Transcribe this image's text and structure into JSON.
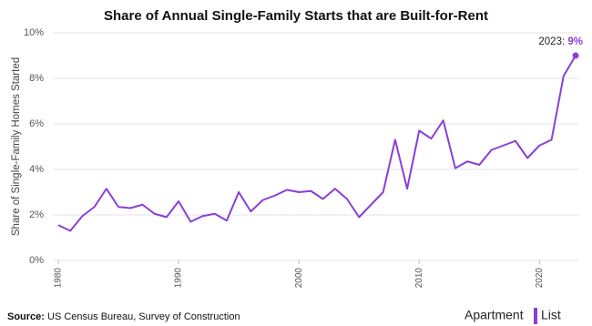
{
  "chart_data": {
    "type": "line",
    "title": "Share of Annual Single-Family Starts that are Built-for-Rent",
    "y_label": "Share of Single-Family Homes Started",
    "x": [
      1980,
      1981,
      1982,
      1983,
      1984,
      1985,
      1986,
      1987,
      1988,
      1989,
      1990,
      1991,
      1992,
      1993,
      1994,
      1995,
      1996,
      1997,
      1998,
      1999,
      2000,
      2001,
      2002,
      2003,
      2004,
      2005,
      2006,
      2007,
      2008,
      2009,
      2010,
      2011,
      2012,
      2013,
      2014,
      2015,
      2016,
      2017,
      2018,
      2019,
      2020,
      2021,
      2022,
      2023
    ],
    "series": [
      {
        "color": "#8a3fd6",
        "values": [
          1.55,
          1.3,
          1.95,
          2.35,
          3.15,
          2.35,
          2.3,
          2.45,
          2.05,
          1.9,
          2.6,
          1.7,
          1.95,
          2.05,
          1.75,
          3.0,
          2.15,
          2.65,
          2.85,
          3.1,
          3.0,
          3.05,
          2.7,
          3.15,
          2.7,
          1.9,
          2.45,
          3.0,
          5.3,
          3.15,
          5.7,
          5.35,
          6.15,
          4.05,
          4.35,
          4.2,
          4.85,
          5.05,
          5.25,
          4.5,
          5.05,
          5.3,
          8.1,
          9.0
        ]
      }
    ],
    "xlim": [
      1980,
      2023
    ],
    "xticks": [
      1980,
      1990,
      2000,
      2010,
      2020
    ],
    "ylim": [
      0,
      10
    ],
    "yticks": [
      {
        "value": 0,
        "label": "0%"
      },
      {
        "value": 2,
        "label": "2%"
      },
      {
        "value": 4,
        "label": "4%"
      },
      {
        "value": 6,
        "label": "6%"
      },
      {
        "value": 8,
        "label": "8%"
      },
      {
        "value": 10,
        "label": "10%"
      }
    ],
    "grid": true,
    "annotation_label": "2023:",
    "annotation_value": "9%",
    "source_label": "Source:",
    "source": "US Census Bureau, Survey of Construction",
    "logo": [
      "Apartment",
      "List"
    ]
  }
}
